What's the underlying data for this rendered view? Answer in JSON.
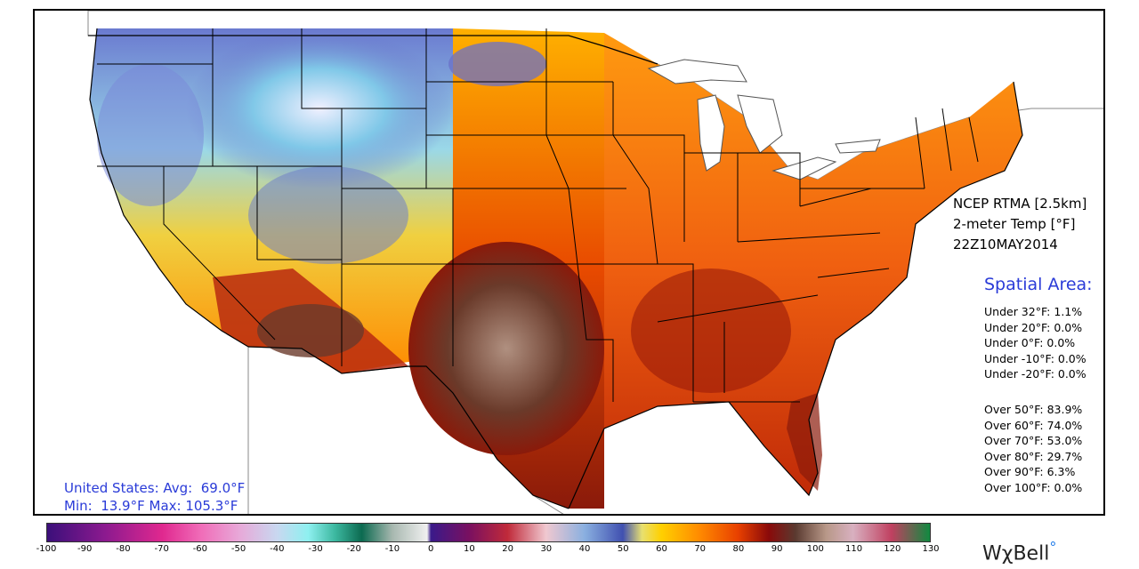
{
  "product": {
    "line1": "NCEP RTMA [2.5km]",
    "line2": "2-meter Temp [°F]",
    "line3": "22Z10MAY2014"
  },
  "spatial_area": {
    "title": "Spatial Area:",
    "under": [
      "Under 32°F: 1.1%",
      "Under 20°F: 0.0%",
      "Under 0°F: 0.0%",
      "Under -10°F: 0.0%",
      "Under -20°F: 0.0%"
    ],
    "over": [
      "Over 50°F: 83.9%",
      "Over 60°F: 74.0%",
      "Over 70°F: 53.0%",
      "Over 80°F: 29.7%",
      "Over 90°F: 6.3%",
      "Over 100°F: 0.0%"
    ]
  },
  "us_stats": {
    "line1": "United States: Avg:  69.0°F",
    "line2": "Min:  13.9°F Max: 105.3°F"
  },
  "colorbar": {
    "ticks": [
      "-100",
      "-90",
      "-80",
      "-70",
      "-60",
      "-50",
      "-40",
      "-30",
      "-20",
      "-10",
      "0",
      "10",
      "20",
      "30",
      "40",
      "50",
      "60",
      "70",
      "80",
      "90",
      "100",
      "110",
      "120",
      "130"
    ],
    "range": [
      -100,
      130
    ],
    "stops": [
      {
        "v": -100,
        "c": "#3b0f7a"
      },
      {
        "v": -85,
        "c": "#8b1a8f"
      },
      {
        "v": -70,
        "c": "#e0288f"
      },
      {
        "v": -60,
        "c": "#f06cb8"
      },
      {
        "v": -50,
        "c": "#e8a8d8"
      },
      {
        "v": -40,
        "c": "#c8d8f0"
      },
      {
        "v": -32,
        "c": "#8ef0f0"
      },
      {
        "v": -25,
        "c": "#3cb8a0"
      },
      {
        "v": -18,
        "c": "#0c6a50"
      },
      {
        "v": -10,
        "c": "#a8b8b0"
      },
      {
        "v": -1,
        "c": "#f0f0f0"
      },
      {
        "v": 0,
        "c": "#3a1a8a"
      },
      {
        "v": 10,
        "c": "#7a1060"
      },
      {
        "v": 20,
        "c": "#c02a3a"
      },
      {
        "v": 30,
        "c": "#f0c8d0"
      },
      {
        "v": 40,
        "c": "#8ab0e0"
      },
      {
        "v": 50,
        "c": "#4050b0"
      },
      {
        "v": 55,
        "c": "#e8e070"
      },
      {
        "v": 60,
        "c": "#ffd000"
      },
      {
        "v": 70,
        "c": "#ff8a00"
      },
      {
        "v": 80,
        "c": "#e84000"
      },
      {
        "v": 88,
        "c": "#8a0a0a"
      },
      {
        "v": 95,
        "c": "#5a3a30"
      },
      {
        "v": 103,
        "c": "#b89888"
      },
      {
        "v": 110,
        "c": "#d8b0c0"
      },
      {
        "v": 120,
        "c": "#c04060"
      },
      {
        "v": 130,
        "c": "#108a40"
      }
    ]
  },
  "logo": {
    "text": "WχBell",
    "mark": "°"
  },
  "colors": {
    "stat_blue": "#2a3bd8",
    "ocean": "#ffffff",
    "border": "#000000"
  }
}
